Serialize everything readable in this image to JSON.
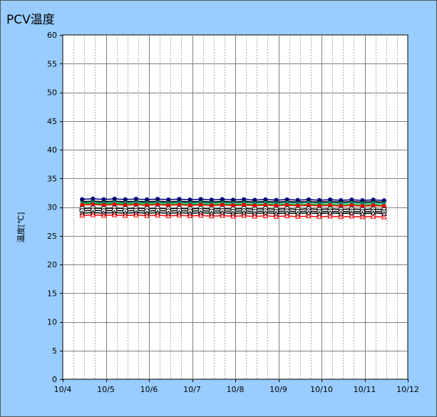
{
  "chart_data": {
    "type": "line",
    "title": "PCV温度",
    "xlabel": "",
    "ylabel": "温度[℃]",
    "ylim": [
      0,
      60
    ],
    "y_ticks": [
      "0",
      "5",
      "10",
      "15",
      "20",
      "25",
      "30",
      "35",
      "40",
      "45",
      "50",
      "55",
      "60"
    ],
    "x_ticks": [
      "10/4",
      "10/5",
      "10/6",
      "10/7",
      "10/8",
      "10/9",
      "10/10",
      "10/11",
      "10/12"
    ],
    "x_range_days": [
      "10/4",
      "10/12"
    ],
    "x_sample_start_day": 0.45,
    "x_sample_end_day": 7.45,
    "x_sample_step_day": 0.25,
    "grid": true,
    "series": [
      {
        "color": "#000080",
        "marker": "circle-filled",
        "start": 31.4,
        "end": 31.2
      },
      {
        "color": "#000000",
        "marker": "diamond",
        "start": 31.0,
        "end": 30.9
      },
      {
        "color": "#008080",
        "marker": "square",
        "start": 30.8,
        "end": 30.7
      },
      {
        "color": "#00aa00",
        "marker": "triangle",
        "start": 30.6,
        "end": 30.4
      },
      {
        "color": "#ff0000",
        "marker": "circle-filled",
        "start": 30.4,
        "end": 30.2
      },
      {
        "color": "#000000",
        "marker": "circle-open",
        "start": 29.8,
        "end": 29.6
      },
      {
        "color": "#000000",
        "marker": "circle-open",
        "start": 29.4,
        "end": 29.2
      },
      {
        "color": "#000000",
        "marker": "triangle-open",
        "start": 29.0,
        "end": 28.9
      },
      {
        "color": "#ff0000",
        "marker": "triangle-open",
        "start": 28.6,
        "end": 28.3
      }
    ],
    "colors": {
      "background": "#99ccff",
      "plot_area": "#ffffff",
      "grid": "#808080"
    }
  }
}
